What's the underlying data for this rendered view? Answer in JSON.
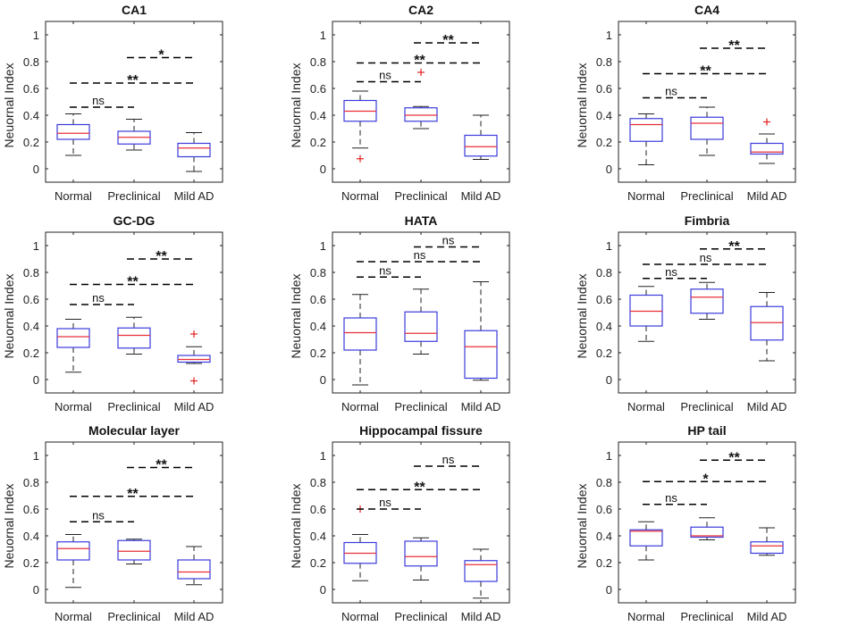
{
  "figure": {
    "ylabel": "Neuornal Index",
    "categories": [
      "Normal",
      "Preclinical",
      "Mild AD"
    ],
    "yticks": [
      "0",
      "0.2",
      "0.4",
      "0.6",
      "0.8",
      "1"
    ],
    "colors": {
      "box": "#3b3bdc",
      "median": "#e8303a",
      "whisker": "#222222",
      "outlier": "#e02020",
      "bracket": "#000000"
    }
  },
  "chart_data": [
    {
      "type": "box",
      "title": "CA1",
      "ylabel": "Neuornal Index",
      "categories": [
        "Normal",
        "Preclinical",
        "Mild AD"
      ],
      "ylim": [
        -0.1,
        1.1
      ],
      "yticks": [
        0,
        0.2,
        0.4,
        0.6,
        0.8,
        1
      ],
      "boxes": [
        {
          "min": 0.1,
          "q1": 0.22,
          "median": 0.265,
          "q3": 0.33,
          "max": 0.41,
          "outliers": []
        },
        {
          "min": 0.14,
          "q1": 0.185,
          "median": 0.235,
          "q3": 0.28,
          "max": 0.37,
          "outliers": []
        },
        {
          "min": -0.02,
          "q1": 0.09,
          "median": 0.155,
          "q3": 0.19,
          "max": 0.27,
          "outliers": []
        }
      ],
      "comparisons": [
        {
          "from": 0,
          "to": 1,
          "y": 0.46,
          "label": "ns"
        },
        {
          "from": 0,
          "to": 2,
          "y": 0.64,
          "label": "**"
        },
        {
          "from": 1,
          "to": 2,
          "y": 0.83,
          "label": "*"
        }
      ]
    },
    {
      "type": "box",
      "title": "CA2",
      "ylabel": "Neuornal Index",
      "categories": [
        "Normal",
        "Preclinical",
        "Mild AD"
      ],
      "ylim": [
        -0.1,
        1.1
      ],
      "yticks": [
        0,
        0.2,
        0.4,
        0.6,
        0.8,
        1
      ],
      "boxes": [
        {
          "min": 0.155,
          "q1": 0.355,
          "median": 0.43,
          "q3": 0.51,
          "max": 0.58,
          "outliers": [
            0.075
          ]
        },
        {
          "min": 0.3,
          "q1": 0.355,
          "median": 0.4,
          "q3": 0.455,
          "max": 0.465,
          "outliers": [
            0.72
          ]
        },
        {
          "min": 0.07,
          "q1": 0.095,
          "median": 0.165,
          "q3": 0.25,
          "max": 0.4,
          "outliers": []
        }
      ],
      "comparisons": [
        {
          "from": 0,
          "to": 1,
          "y": 0.65,
          "label": "ns"
        },
        {
          "from": 0,
          "to": 2,
          "y": 0.79,
          "label": "**"
        },
        {
          "from": 1,
          "to": 2,
          "y": 0.94,
          "label": "**"
        }
      ]
    },
    {
      "type": "box",
      "title": "CA4",
      "ylabel": "Neuornal Index",
      "categories": [
        "Normal",
        "Preclinical",
        "Mild AD"
      ],
      "ylim": [
        -0.1,
        1.1
      ],
      "yticks": [
        0,
        0.2,
        0.4,
        0.6,
        0.8,
        1
      ],
      "boxes": [
        {
          "min": 0.03,
          "q1": 0.205,
          "median": 0.33,
          "q3": 0.375,
          "max": 0.41,
          "outliers": []
        },
        {
          "min": 0.1,
          "q1": 0.22,
          "median": 0.34,
          "q3": 0.385,
          "max": 0.46,
          "outliers": []
        },
        {
          "min": 0.04,
          "q1": 0.11,
          "median": 0.125,
          "q3": 0.19,
          "max": 0.26,
          "outliers": [
            0.35
          ]
        }
      ],
      "comparisons": [
        {
          "from": 0,
          "to": 1,
          "y": 0.53,
          "label": "ns"
        },
        {
          "from": 0,
          "to": 2,
          "y": 0.71,
          "label": "**"
        },
        {
          "from": 1,
          "to": 2,
          "y": 0.9,
          "label": "**"
        }
      ]
    },
    {
      "type": "box",
      "title": "GC-DG",
      "ylabel": "Neuornal Index",
      "categories": [
        "Normal",
        "Preclinical",
        "Mild AD"
      ],
      "ylim": [
        -0.1,
        1.1
      ],
      "yticks": [
        0,
        0.2,
        0.4,
        0.6,
        0.8,
        1
      ],
      "boxes": [
        {
          "min": 0.055,
          "q1": 0.24,
          "median": 0.32,
          "q3": 0.38,
          "max": 0.45,
          "outliers": []
        },
        {
          "min": 0.19,
          "q1": 0.235,
          "median": 0.33,
          "q3": 0.385,
          "max": 0.465,
          "outliers": []
        },
        {
          "min": 0.12,
          "q1": 0.13,
          "median": 0.15,
          "q3": 0.18,
          "max": 0.245,
          "outliers": [
            0.34,
            -0.01
          ]
        }
      ],
      "comparisons": [
        {
          "from": 0,
          "to": 1,
          "y": 0.56,
          "label": "ns"
        },
        {
          "from": 0,
          "to": 2,
          "y": 0.71,
          "label": "**"
        },
        {
          "from": 1,
          "to": 2,
          "y": 0.9,
          "label": "**"
        }
      ]
    },
    {
      "type": "box",
      "title": "HATA",
      "ylabel": "Neuornal Index",
      "categories": [
        "Normal",
        "Preclinical",
        "Mild AD"
      ],
      "ylim": [
        -0.1,
        1.1
      ],
      "yticks": [
        0,
        0.2,
        0.4,
        0.6,
        0.8,
        1
      ],
      "boxes": [
        {
          "min": -0.04,
          "q1": 0.22,
          "median": 0.35,
          "q3": 0.46,
          "max": 0.635,
          "outliers": []
        },
        {
          "min": 0.19,
          "q1": 0.285,
          "median": 0.345,
          "q3": 0.505,
          "max": 0.675,
          "outliers": []
        },
        {
          "min": -0.005,
          "q1": 0.01,
          "median": 0.245,
          "q3": 0.365,
          "max": 0.73,
          "outliers": []
        }
      ],
      "comparisons": [
        {
          "from": 0,
          "to": 1,
          "y": 0.765,
          "label": "ns"
        },
        {
          "from": 0,
          "to": 2,
          "y": 0.88,
          "label": "ns"
        },
        {
          "from": 1,
          "to": 2,
          "y": 0.99,
          "label": "ns"
        }
      ]
    },
    {
      "type": "box",
      "title": "Fimbria",
      "ylabel": "Neuornal Index",
      "categories": [
        "Normal",
        "Preclinical",
        "Mild AD"
      ],
      "ylim": [
        -0.1,
        1.1
      ],
      "yticks": [
        0,
        0.2,
        0.4,
        0.6,
        0.8,
        1
      ],
      "boxes": [
        {
          "min": 0.285,
          "q1": 0.4,
          "median": 0.51,
          "q3": 0.63,
          "max": 0.695,
          "outliers": []
        },
        {
          "min": 0.45,
          "q1": 0.495,
          "median": 0.615,
          "q3": 0.675,
          "max": 0.725,
          "outliers": []
        },
        {
          "min": 0.14,
          "q1": 0.295,
          "median": 0.425,
          "q3": 0.545,
          "max": 0.65,
          "outliers": []
        }
      ],
      "comparisons": [
        {
          "from": 0,
          "to": 1,
          "y": 0.755,
          "label": "ns"
        },
        {
          "from": 0,
          "to": 2,
          "y": 0.86,
          "label": "ns"
        },
        {
          "from": 1,
          "to": 2,
          "y": 0.975,
          "label": "**"
        }
      ]
    },
    {
      "type": "box",
      "title": "Molecular layer",
      "ylabel": "Neuornal Index",
      "categories": [
        "Normal",
        "Preclinical",
        "Mild AD"
      ],
      "ylim": [
        -0.1,
        1.1
      ],
      "yticks": [
        0,
        0.2,
        0.4,
        0.6,
        0.8,
        1
      ],
      "boxes": [
        {
          "min": 0.015,
          "q1": 0.22,
          "median": 0.305,
          "q3": 0.355,
          "max": 0.41,
          "outliers": []
        },
        {
          "min": 0.19,
          "q1": 0.22,
          "median": 0.285,
          "q3": 0.365,
          "max": 0.375,
          "outliers": []
        },
        {
          "min": 0.035,
          "q1": 0.08,
          "median": 0.13,
          "q3": 0.22,
          "max": 0.32,
          "outliers": []
        }
      ],
      "comparisons": [
        {
          "from": 0,
          "to": 1,
          "y": 0.505,
          "label": "ns"
        },
        {
          "from": 0,
          "to": 2,
          "y": 0.695,
          "label": "**"
        },
        {
          "from": 1,
          "to": 2,
          "y": 0.91,
          "label": "**"
        }
      ]
    },
    {
      "type": "box",
      "title": "Hippocampal fissure",
      "ylabel": "Neuornal Index",
      "categories": [
        "Normal",
        "Preclinical",
        "Mild AD"
      ],
      "ylim": [
        -0.1,
        1.1
      ],
      "yticks": [
        0,
        0.2,
        0.4,
        0.6,
        0.8,
        1
      ],
      "boxes": [
        {
          "min": 0.065,
          "q1": 0.195,
          "median": 0.27,
          "q3": 0.35,
          "max": 0.41,
          "outliers": [
            0.6
          ]
        },
        {
          "min": 0.07,
          "q1": 0.175,
          "median": 0.245,
          "q3": 0.36,
          "max": 0.385,
          "outliers": []
        },
        {
          "min": -0.065,
          "q1": 0.06,
          "median": 0.185,
          "q3": 0.215,
          "max": 0.3,
          "outliers": []
        }
      ],
      "comparisons": [
        {
          "from": 0,
          "to": 1,
          "y": 0.6,
          "label": "ns"
        },
        {
          "from": 0,
          "to": 2,
          "y": 0.745,
          "label": "**"
        },
        {
          "from": 1,
          "to": 2,
          "y": 0.92,
          "label": "ns"
        }
      ]
    },
    {
      "type": "box",
      "title": "HP tail",
      "ylabel": "Neuornal Index",
      "categories": [
        "Normal",
        "Preclinical",
        "Mild AD"
      ],
      "ylim": [
        -0.1,
        1.1
      ],
      "yticks": [
        0,
        0.2,
        0.4,
        0.6,
        0.8,
        1
      ],
      "boxes": [
        {
          "min": 0.22,
          "q1": 0.325,
          "median": 0.435,
          "q3": 0.445,
          "max": 0.505,
          "outliers": []
        },
        {
          "min": 0.37,
          "q1": 0.39,
          "median": 0.4,
          "q3": 0.465,
          "max": 0.535,
          "outliers": []
        },
        {
          "min": 0.255,
          "q1": 0.27,
          "median": 0.325,
          "q3": 0.355,
          "max": 0.46,
          "outliers": []
        }
      ],
      "comparisons": [
        {
          "from": 0,
          "to": 1,
          "y": 0.635,
          "label": "ns"
        },
        {
          "from": 0,
          "to": 2,
          "y": 0.805,
          "label": "*"
        },
        {
          "from": 1,
          "to": 2,
          "y": 0.965,
          "label": "**"
        }
      ]
    }
  ]
}
